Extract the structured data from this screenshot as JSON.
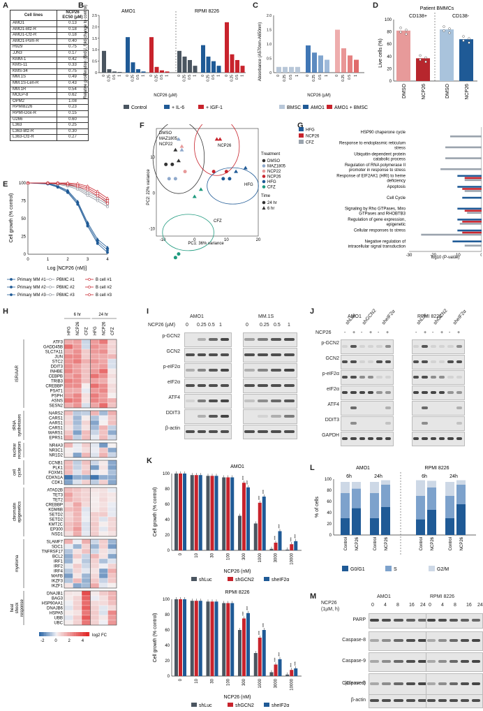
{
  "panel_letters": [
    "A",
    "B",
    "C",
    "D",
    "E",
    "F",
    "G",
    "H",
    "I",
    "J",
    "K",
    "L",
    "M"
  ],
  "panelA": {
    "col1": "Cell lines",
    "col2a": "NCP26",
    "col2b": "EC50 (µM)",
    "rows": [
      [
        "AMO1",
        "0.13"
      ],
      [
        "AMO1-Btz-R",
        "0.18"
      ],
      [
        "AMO1-Cfz-R",
        "0.18"
      ],
      [
        "AMO1-Pom-R",
        "0.40"
      ],
      [
        "H929",
        "0.75"
      ],
      [
        "JJN3",
        "0.17"
      ],
      [
        "KMM-1",
        "0.42"
      ],
      [
        "KMS-11",
        "0.33"
      ],
      [
        "KMS-34",
        "0.75"
      ],
      [
        "MM.1S",
        "0.49"
      ],
      [
        "MM.1S-Len-R",
        "0.43"
      ],
      [
        "MM.1R",
        "0.54"
      ],
      [
        "MOLP-8",
        "0.62"
      ],
      [
        "OPM2",
        "1.08"
      ],
      [
        "RPMI8226",
        "0.23"
      ],
      [
        "RPMI-Dox-R",
        "0.15"
      ],
      [
        "U266",
        "0.60"
      ],
      [
        "L363",
        "0.25"
      ],
      [
        "L363-Btz-R",
        "0.30"
      ],
      [
        "L363-Cfz-R",
        "0.27"
      ]
    ]
  },
  "panelB": {
    "title_left": "AMO1",
    "title_right": "RPMI 8226",
    "ylabel": "Relative proliferation (BrdU, fold change to control)",
    "xlabel": "NCP26 (µM)",
    "legend": [
      "Control",
      "+ IL-6",
      "+ IGF-1"
    ],
    "chart_data": {
      "type": "bar",
      "categories": [
        "0",
        "0.25",
        "0.5",
        "1"
      ],
      "ylim": [
        0,
        2.5
      ],
      "yticks": [
        "0",
        "0.5",
        "1.0",
        "1.5",
        "2.0",
        "2.5"
      ],
      "series": [
        {
          "name": "AMO1 Control",
          "values": [
            0.95,
            0.15,
            0.05,
            0.03
          ]
        },
        {
          "name": "AMO1 + IL-6",
          "values": [
            1.55,
            0.45,
            0.15,
            0.05
          ]
        },
        {
          "name": "AMO1 + IGF-1",
          "values": [
            1.55,
            0.25,
            0.1,
            0.05
          ]
        },
        {
          "name": "RPMI 8226 Control",
          "values": [
            0.95,
            0.7,
            0.55,
            0.3
          ]
        },
        {
          "name": "RPMI 8226 + IL-6",
          "values": [
            1.2,
            0.7,
            0.5,
            0.3
          ]
        },
        {
          "name": "RPMI 8226 + IGF-1",
          "values": [
            2.2,
            0.8,
            0.55,
            0.3
          ]
        }
      ]
    }
  },
  "panelC": {
    "ylabel": "Absorbance (A570nm-A650nm)",
    "xlabel": "NCP26 (µM)",
    "legend": [
      "BMSC",
      "AMO1",
      "AMO1 + BMSC"
    ],
    "chart_data": {
      "type": "bar",
      "categories": [
        "0",
        "0.25",
        "0.5",
        "1"
      ],
      "ylim": [
        0,
        2.0
      ],
      "yticks": [
        "0",
        "0.5",
        "1.0",
        "1.5",
        "2.0"
      ],
      "series": [
        {
          "name": "BMSC",
          "values": [
            0.2,
            0.2,
            0.2,
            0.2
          ]
        },
        {
          "name": "AMO1",
          "values": [
            0.95,
            0.7,
            0.6,
            0.45
          ]
        },
        {
          "name": "AMO1 + BMSC",
          "values": [
            1.5,
            0.85,
            0.6,
            0.45
          ]
        }
      ]
    }
  },
  "panelD": {
    "title": "Patient BMMCs",
    "group1": "CD138+",
    "group2": "CD138-",
    "ylabel": "Live cells (%)",
    "chart_data": {
      "type": "bar",
      "categories": [
        "DMSO",
        "NCP26",
        "DMSO",
        "NCP26"
      ],
      "values": [
        82,
        37,
        84,
        68
      ],
      "ylim": [
        0,
        100
      ],
      "yticks": [
        "0",
        "20",
        "40",
        "60",
        "80",
        "100"
      ]
    }
  },
  "panelE": {
    "ylabel": "Cell growth (% control)",
    "xlabel": "Log [NCP26 (nM)]",
    "xticks": [
      "0",
      "1",
      "2",
      "3",
      "4"
    ],
    "yticks": [
      "0",
      "25",
      "50",
      "75",
      "100"
    ],
    "legend": [
      "Primary MM #1",
      "PBMC #1",
      "B cell #1",
      "Primary MM #2",
      "PBMC #2",
      "B cell #2",
      "Primary MM #3",
      "PBMC #3",
      "B cell #3"
    ],
    "chart_data": {
      "type": "line",
      "x": [
        0,
        1,
        1.5,
        2,
        2.5,
        3,
        3.5,
        4
      ],
      "series": [
        {
          "name": "Primary MM",
          "values": [
            100,
            99,
            95,
            88,
            72,
            42,
            18,
            6
          ]
        },
        {
          "name": "PBMC",
          "values": [
            100,
            100,
            99,
            97,
            93,
            85,
            78,
            70
          ]
        },
        {
          "name": "B cell",
          "values": [
            100,
            100,
            100,
            99,
            97,
            93,
            85,
            75
          ]
        }
      ]
    }
  },
  "panelF": {
    "xlabel": "PC1: 36% variance",
    "ylabel": "PC2: 22% variance",
    "xticks": [
      "-10",
      "0",
      "10",
      "20"
    ],
    "yticks": [
      "-10",
      "0",
      "10"
    ],
    "cluster_labels": [
      "DMSO",
      "MAZ1805",
      "NCP22",
      "NCP26",
      "HFG",
      "CFZ"
    ],
    "legend_title": "Treatment",
    "legend": [
      "DMSO",
      "MAZ1805",
      "NCP22",
      "NCP26",
      "HFG",
      "CFZ"
    ],
    "time_title": "Time",
    "time": [
      "24 hr",
      "6 hr"
    ]
  },
  "panelG": {
    "legend": [
      "HFG",
      "NCP26",
      "CFZ"
    ],
    "xlabel": "log10 (P-value)",
    "xticks": [
      "-30",
      "-20",
      "-10",
      "0"
    ],
    "chart_data": {
      "type": "bar",
      "categories": [
        "HSP90 chaperone cycle",
        "Response to endoplasmic reticulum stress",
        "Ubiquitin-dependent protein catabolic process",
        "Regulation of RNA polymerase II promoter in response to stress",
        "Response of EIF2AK1 (HRI) to heme deficiency",
        "Apoptosis",
        "Cell Cycle",
        "Signaling by Rho GTPases, Miro GTPases and RHOBTB3",
        "Regulation of gene expression, epigenetic",
        "Cellular responses to stress",
        "Negative regulation of intracellular signal transduction"
      ],
      "series": [
        {
          "name": "HFG",
          "values": [
            0,
            0,
            0,
            0,
            -10,
            -10,
            -8,
            -10,
            -10,
            -10,
            -12
          ]
        },
        {
          "name": "NCP26",
          "values": [
            0,
            0,
            0,
            0,
            -7,
            -8,
            0,
            -7,
            -8,
            -8,
            0
          ]
        },
        {
          "name": "CFZ",
          "values": [
            -13,
            -15,
            -15,
            -17,
            -7,
            -7,
            0,
            -6,
            -9,
            -25,
            -7
          ]
        }
      ]
    }
  },
  "panelH": {
    "time1": "6 hr",
    "time2": "24 hr",
    "columns": [
      "HFG",
      "NCP26",
      "CFZ",
      "HFG",
      "NCP26",
      "CFZ"
    ],
    "legend_label": "log2 FC",
    "legend_ticks": [
      "-2",
      "0",
      "2",
      "4"
    ],
    "groups": [
      {
        "name": "ISR/AAR",
        "genes": [
          "ATF3",
          "GADD45B",
          "SLC7A11",
          "JUN",
          "STC2",
          "DDIT3",
          "INHBE",
          "CEBPB",
          "TRIB3",
          "CREBBP",
          "PSAT1",
          "PSPH",
          "ASNS",
          "SESN2"
        ]
      },
      {
        "name": "tRNA synthetases",
        "genes": [
          "NARS2",
          "CARS1",
          "AARS1",
          "CARS1",
          "WARS1",
          "EPRS1"
        ]
      },
      {
        "name": "nuclear receptors",
        "genes": [
          "NR4A3",
          "NR3C1",
          "NR1D2"
        ]
      },
      {
        "name": "cell cycle",
        "genes": [
          "CCNB1",
          "PLK1",
          "FOXM1",
          "CDKN1A",
          "CDK1"
        ]
      },
      {
        "name": "chromatin epigenetics",
        "genes": [
          "ATAD2B",
          "TET3",
          "TET2",
          "CREBBP",
          "KDM6B",
          "SETD2",
          "SETD2",
          "KMT2C",
          "EP300",
          "NSD1"
        ]
      },
      {
        "name": "myeloma",
        "genes": [
          "SLAMF7",
          "SDC1",
          "TNFRSF17",
          "BCL2",
          "IRF1",
          "IRF2",
          "IRF4",
          "MAFB",
          "IKZF3",
          "IKZF1"
        ]
      },
      {
        "name": "heat shock response",
        "genes": [
          "DNAJB1",
          "BAG3",
          "HSP90AA1",
          "DNAJB6",
          "HSPA5",
          "UBB",
          "UBC"
        ]
      }
    ]
  },
  "panelI": {
    "cell1": "AMO1",
    "cell2": "MM.1S",
    "conc_label": "NCP26 (µM)",
    "conc": [
      "0",
      "0.25",
      "0.5",
      "1",
      "0",
      "0.25",
      "0.5",
      "1"
    ],
    "proteins": [
      "p-GCN2",
      "GCN2",
      "p-eIF2α",
      "eIF2α",
      "ATF4",
      "DDIT3",
      "β-actin"
    ]
  },
  "panelJ": {
    "cell1": "AMO1",
    "cell2": "RPMI 8226",
    "shrna": [
      "shLuc",
      "shGCN2",
      "sheIF2α",
      "shLuc",
      "shGCN2",
      "sheIF2α"
    ],
    "ncp_label": "NCP26",
    "signs": [
      "-",
      "+",
      "-",
      "+",
      "-",
      "+",
      "-",
      "+",
      "-",
      "+",
      "-",
      "+"
    ],
    "proteins": [
      "p-GCN2",
      "GCN2",
      "p-eIF2α",
      "eIF2α",
      "ATF4",
      "DDIT3",
      "GAPDH"
    ]
  },
  "panelK": {
    "title1": "AMO1",
    "title2": "RPMI 8226",
    "ylabel": "Cell growth (% control)",
    "xlabel": "NCP26 (nM)",
    "legend": [
      "shLuc",
      "shGCN2",
      "sheIF2α"
    ],
    "stars": "***",
    "chart_data": [
      {
        "type": "bar",
        "title": "AMO1",
        "categories": [
          "0",
          "10",
          "30",
          "100",
          "300",
          "1000",
          "3000",
          "10000"
        ],
        "ylim": [
          0,
          100
        ],
        "yticks": [
          "0",
          "20",
          "40",
          "60",
          "80",
          "100"
        ],
        "series": [
          {
            "name": "shLuc",
            "values": [
              100,
              98,
              97,
              95,
              45,
              35,
              2,
              1
            ]
          },
          {
            "name": "shGCN2",
            "values": [
              100,
              98,
              97,
              95,
              88,
              62,
              10,
              8
            ]
          },
          {
            "name": "sheIF2α",
            "values": [
              100,
              98,
              97,
              95,
              82,
              70,
              25,
              12
            ]
          }
        ]
      },
      {
        "type": "bar",
        "title": "RPMI 8226",
        "categories": [
          "0",
          "10",
          "30",
          "100",
          "300",
          "1000",
          "3000",
          "10000"
        ],
        "ylim": [
          0,
          100
        ],
        "yticks": [
          "0",
          "20",
          "40",
          "60",
          "80",
          "100"
        ],
        "series": [
          {
            "name": "shLuc",
            "values": [
              100,
              98,
              97,
              95,
              60,
              30,
              5,
              2
            ]
          },
          {
            "name": "shGCN2",
            "values": [
              100,
              98,
              97,
              95,
              75,
              50,
              15,
              8
            ]
          },
          {
            "name": "sheIF2α",
            "values": [
              100,
              98,
              97,
              95,
              82,
              60,
              22,
              10
            ]
          }
        ]
      }
    ]
  },
  "panelL": {
    "cell1": "AMO1",
    "cell2": "RPMI 8226",
    "times": [
      "6h",
      "24h",
      "6h",
      "24h"
    ],
    "xcats": [
      "Control",
      "NCP26",
      "Control",
      "NCP26",
      "Control",
      "NCP26",
      "Control",
      "NCP26"
    ],
    "ylabel": "% of cells",
    "yticks": [
      "0",
      "20",
      "40",
      "60",
      "80",
      "100"
    ],
    "legend": [
      "G0/G1",
      "S",
      "G2/M"
    ],
    "chart_data": {
      "type": "bar",
      "stacked": true,
      "categories": [
        "Control",
        "NCP26",
        "Control",
        "NCP26",
        "Control",
        "NCP26",
        "Control",
        "NCP26"
      ],
      "series": [
        {
          "name": "G0/G1",
          "values": [
            30,
            48,
            30,
            50,
            28,
            45,
            30,
            55
          ]
        },
        {
          "name": "S",
          "values": [
            45,
            35,
            45,
            40,
            42,
            40,
            40,
            35
          ]
        },
        {
          "name": "G2/M",
          "values": [
            20,
            12,
            20,
            8,
            28,
            12,
            25,
            8
          ]
        }
      ]
    }
  },
  "panelM": {
    "ncp_label": "NCP26",
    "ncp_sub": "(1µM, h)",
    "cell1": "AMO1",
    "cell2": "RPMI 8226",
    "times": [
      "0",
      "4",
      "8",
      "16",
      "24",
      "0",
      "4",
      "8",
      "16",
      "24"
    ],
    "proteins": [
      "PARP",
      "Caspase-8",
      "Caspase-9",
      "Caspase-3",
      "(Cleaved)",
      "β-actin"
    ]
  },
  "colors": {
    "control": "#4a5560",
    "il6": "#1f5a96",
    "igf1": "#c8232c",
    "bmsc": "#b8c7d8",
    "amo1": "#3f76b5",
    "amo1bmsc": "#e06a6a",
    "hfg": "#1f5a96",
    "ncp26": "#c8232c",
    "cfz": "#9aa3ad"
  }
}
